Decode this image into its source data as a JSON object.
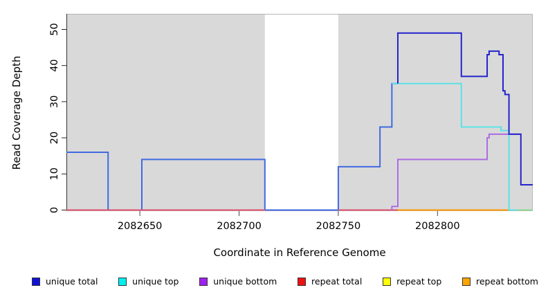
{
  "chart_data": {
    "type": "line",
    "title": "",
    "xlabel": "Coordinate in Reference Genome",
    "ylabel": "Read Coverage Depth",
    "xlim": [
      2082613,
      2082848
    ],
    "ylim": [
      0,
      54
    ],
    "xticks": [
      2082650,
      2082700,
      2082750,
      2082800
    ],
    "yticks": [
      0,
      10,
      20,
      30,
      40,
      50
    ],
    "grid": false,
    "plot_bg": "#d9d9d9",
    "masked_region": {
      "from": 2082713,
      "to": 2082750,
      "color": "#ffffff"
    },
    "series": [
      {
        "name": "unique total and unique top coinciding",
        "layer": "base",
        "color": "#4169e1",
        "steps": [
          [
            2082613,
            16
          ],
          [
            2082634,
            0
          ],
          [
            2082651,
            14
          ],
          [
            2082713,
            0
          ],
          [
            2082750,
            12
          ],
          [
            2082771,
            23
          ],
          [
            2082777,
            35
          ]
        ],
        "end": 2082780
      },
      {
        "name": "unique bottom",
        "color": "#ad6be3",
        "start_from": 0,
        "steps": [
          [
            2082777,
            1
          ],
          [
            2082780,
            14
          ],
          [
            2082825,
            20
          ],
          [
            2082826,
            21
          ]
        ],
        "end": 2082842
      },
      {
        "name": "unique top",
        "color": "#5ce2e6",
        "steps": [
          [
            2082777,
            35
          ],
          [
            2082812,
            23
          ],
          [
            2082832,
            22
          ],
          [
            2082836,
            0
          ]
        ],
        "end": 2082840
      },
      {
        "name": "unique total",
        "color": "#2323cc",
        "start_from": 35,
        "steps": [
          [
            2082780,
            49
          ],
          [
            2082812,
            37
          ],
          [
            2082825,
            43
          ],
          [
            2082826,
            44
          ],
          [
            2082831,
            43
          ],
          [
            2082833,
            33
          ],
          [
            2082834,
            32
          ],
          [
            2082836,
            21
          ],
          [
            2082842,
            7
          ]
        ],
        "end": 2082848
      }
    ],
    "zero_lines": [
      {
        "series": "repeat top",
        "color": "#f0f000",
        "from": 2082613,
        "to": 2082713
      },
      {
        "series": "repeat top",
        "color": "#f0f000",
        "from": 2082750,
        "to": 2082840
      },
      {
        "series": "repeat total",
        "color": "#e0506e",
        "from": 2082613,
        "to": 2082713
      },
      {
        "series": "repeat total",
        "color": "#e0506e",
        "from": 2082750,
        "to": 2082780
      },
      {
        "series": "repeat bottom",
        "color": "#ff9800",
        "from": 2082780,
        "to": 2082840
      },
      {
        "series": "unique top over repeat lines",
        "color": "#90d895",
        "from": 2082840,
        "to": 2082848
      }
    ]
  },
  "legend": {
    "items": [
      {
        "label": "unique total",
        "color": "#1111d6"
      },
      {
        "label": "unique top",
        "color": "#00f0f0"
      },
      {
        "label": "unique bottom",
        "color": "#a020f0"
      },
      {
        "label": "repeat total",
        "color": "#ee1111"
      },
      {
        "label": "repeat top",
        "color": "#ffff00"
      },
      {
        "label": "repeat bottom",
        "color": "#ffa500"
      }
    ]
  }
}
